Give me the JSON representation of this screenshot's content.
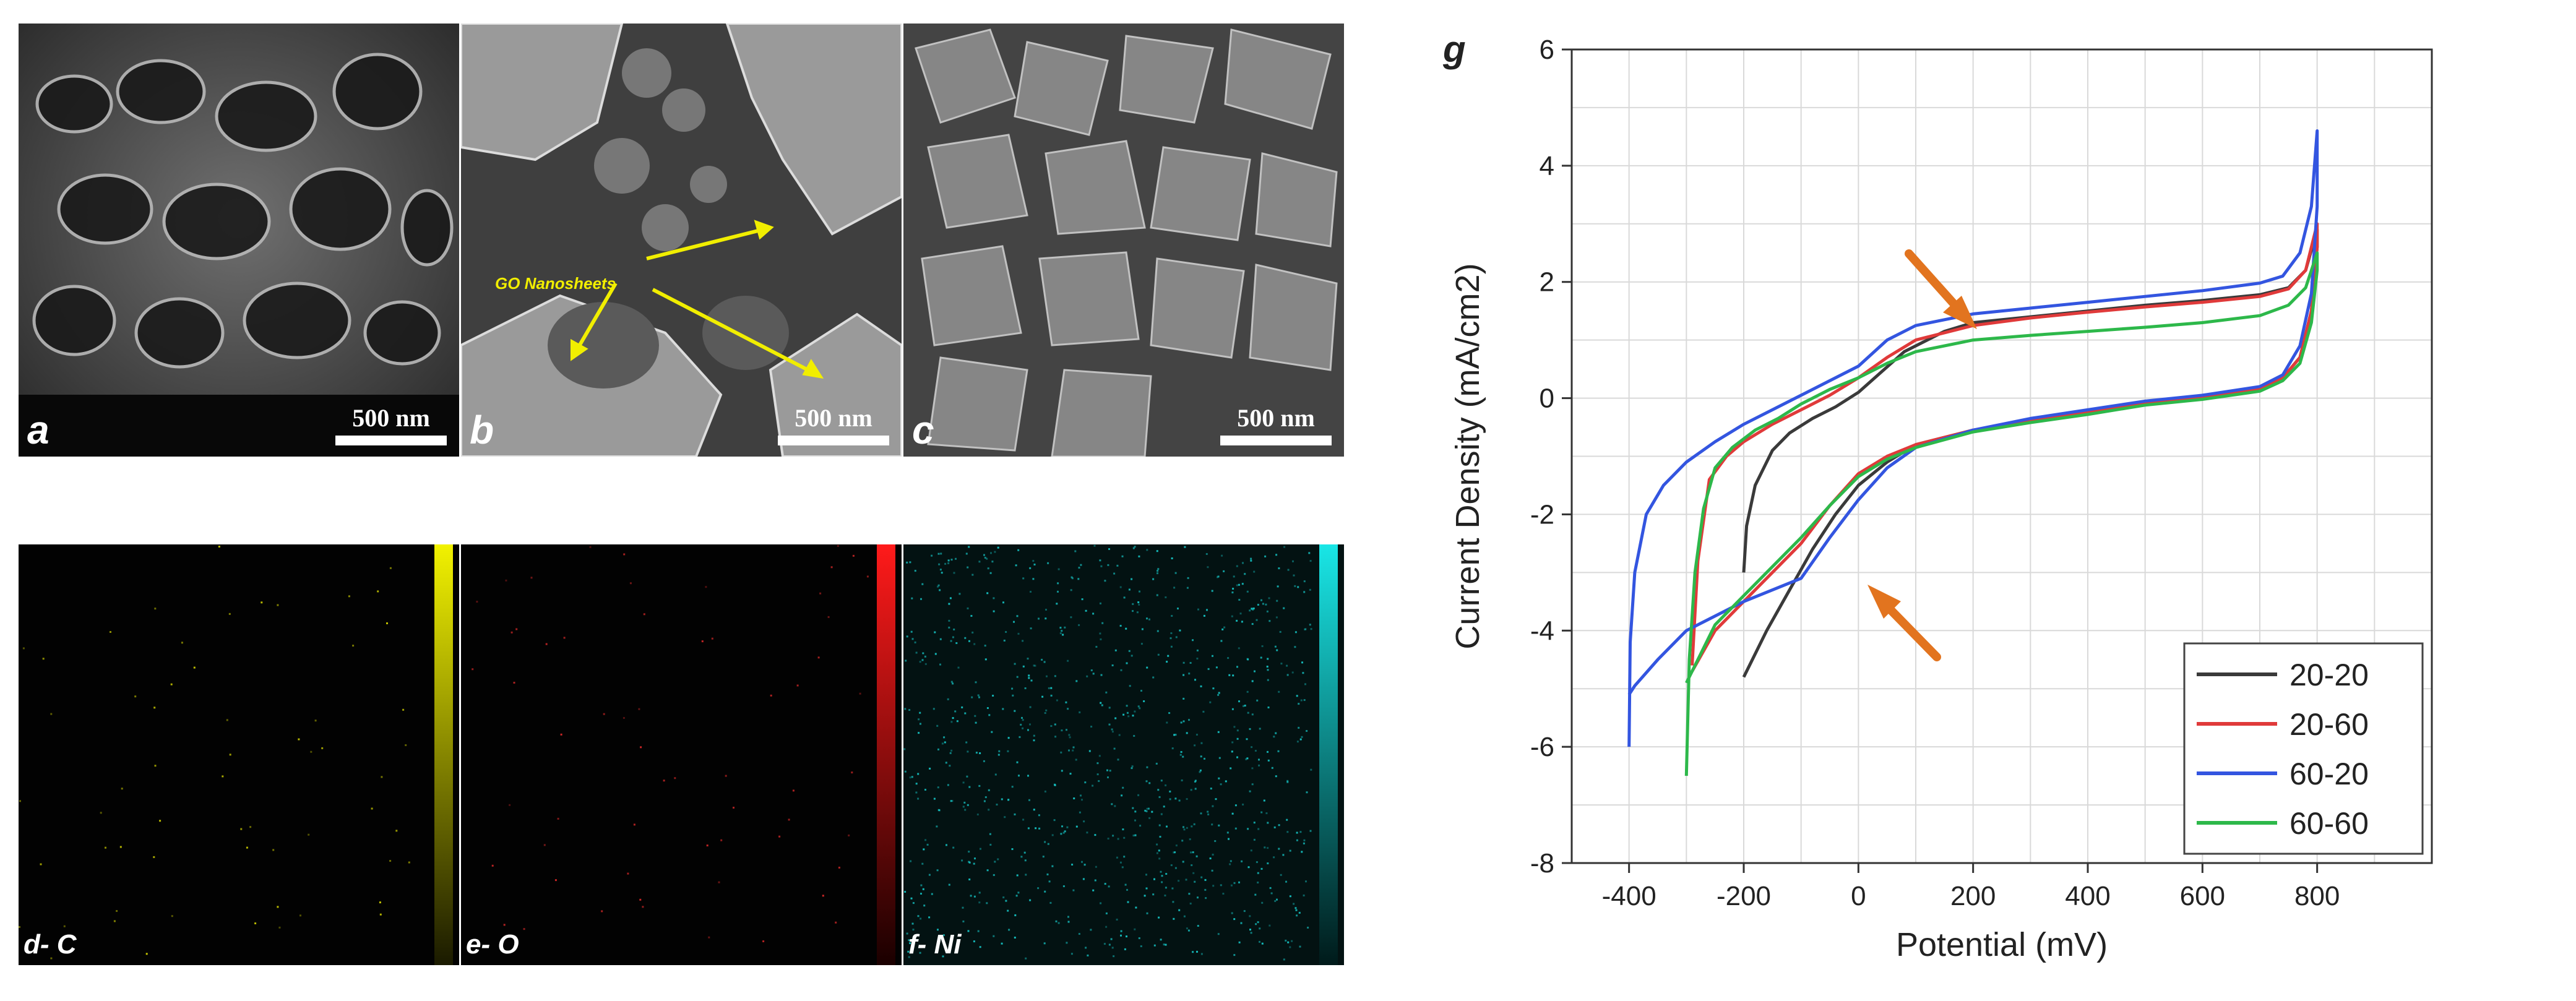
{
  "sem_panels": [
    {
      "label": "a",
      "scale": "500 nm"
    },
    {
      "label": "b",
      "scale": "500 nm",
      "annotation": "GO Nanosheets"
    },
    {
      "label": "c",
      "scale": "500 nm"
    }
  ],
  "map_panels": [
    {
      "label": "d- C",
      "color": "#f2f200"
    },
    {
      "label": "e- O",
      "color": "#ff1a1a"
    },
    {
      "label": "f- Ni",
      "color": "#19e6e6"
    }
  ],
  "chart_data": {
    "type": "line",
    "panel_label": "g",
    "xlabel": "Potential (mV)",
    "ylabel": "Current Density (mA/cm2)",
    "xlim": [
      -500,
      1000
    ],
    "ylim": [
      -8,
      6
    ],
    "xticks": [
      -400,
      -200,
      0,
      200,
      400,
      600,
      800
    ],
    "yticks": [
      -8,
      -6,
      -4,
      -2,
      0,
      2,
      4,
      6
    ],
    "grid": true,
    "legend_position": "bottom-right",
    "series": [
      {
        "name": "20-20",
        "color": "#3a3a3a",
        "x": [
          -200,
          -195,
          -180,
          -150,
          -120,
          -80,
          -40,
          0,
          40,
          80,
          150,
          200,
          300,
          400,
          500,
          600,
          700,
          750,
          780,
          800,
          800,
          790,
          770,
          740,
          700,
          600,
          500,
          400,
          300,
          200,
          100,
          50,
          0,
          -40,
          -80,
          -120,
          -160,
          -190,
          -200
        ],
        "y": [
          -3.0,
          -2.2,
          -1.5,
          -0.9,
          -0.6,
          -0.35,
          -0.15,
          0.1,
          0.45,
          0.8,
          1.15,
          1.3,
          1.4,
          1.5,
          1.6,
          1.68,
          1.78,
          1.9,
          2.2,
          2.9,
          2.6,
          1.5,
          0.7,
          0.35,
          0.15,
          0.0,
          -0.1,
          -0.25,
          -0.4,
          -0.55,
          -0.8,
          -1.1,
          -1.5,
          -2.0,
          -2.6,
          -3.3,
          -4.0,
          -4.6,
          -4.8
        ]
      },
      {
        "name": "20-60",
        "color": "#e03a3a",
        "x": [
          -290,
          -280,
          -260,
          -230,
          -200,
          -150,
          -100,
          -50,
          0,
          50,
          100,
          200,
          300,
          400,
          500,
          600,
          700,
          750,
          780,
          800,
          800,
          790,
          770,
          740,
          700,
          600,
          500,
          400,
          300,
          200,
          100,
          50,
          0,
          -50,
          -100,
          -150,
          -200,
          -250,
          -290
        ],
        "y": [
          -4.6,
          -2.8,
          -1.4,
          -1.0,
          -0.75,
          -0.45,
          -0.2,
          0.05,
          0.35,
          0.7,
          1.0,
          1.25,
          1.38,
          1.48,
          1.57,
          1.65,
          1.75,
          1.88,
          2.2,
          3.0,
          2.6,
          1.5,
          0.7,
          0.35,
          0.15,
          0.0,
          -0.1,
          -0.25,
          -0.4,
          -0.55,
          -0.8,
          -1.0,
          -1.3,
          -1.85,
          -2.5,
          -3.0,
          -3.5,
          -4.0,
          -4.7
        ]
      },
      {
        "name": "60-20",
        "color": "#3355e0",
        "x": [
          -400,
          -398,
          -390,
          -370,
          -340,
          -300,
          -250,
          -200,
          -150,
          -100,
          -50,
          0,
          50,
          100,
          200,
          300,
          400,
          500,
          600,
          700,
          740,
          770,
          790,
          800,
          800,
          790,
          770,
          740,
          700,
          600,
          500,
          400,
          300,
          200,
          100,
          50,
          0,
          -50,
          -100,
          -200,
          -300,
          -350,
          -390,
          -400
        ],
        "y": [
          -6.0,
          -4.2,
          -3.0,
          -2.0,
          -1.5,
          -1.1,
          -0.75,
          -0.45,
          -0.2,
          0.05,
          0.3,
          0.55,
          1.0,
          1.25,
          1.45,
          1.55,
          1.65,
          1.75,
          1.85,
          1.98,
          2.1,
          2.5,
          3.3,
          4.6,
          3.3,
          1.8,
          0.9,
          0.4,
          0.2,
          0.05,
          -0.05,
          -0.2,
          -0.35,
          -0.55,
          -0.85,
          -1.2,
          -1.75,
          -2.4,
          -3.1,
          -3.5,
          -4.0,
          -4.5,
          -4.95,
          -5.1
        ]
      },
      {
        "name": "60-60",
        "color": "#2db84a",
        "x": [
          -300,
          -295,
          -285,
          -270,
          -250,
          -220,
          -180,
          -140,
          -100,
          -50,
          0,
          50,
          100,
          200,
          300,
          400,
          500,
          600,
          700,
          750,
          780,
          800,
          800,
          790,
          770,
          740,
          700,
          600,
          500,
          400,
          300,
          200,
          100,
          50,
          0,
          -50,
          -100,
          -150,
          -200,
          -250,
          -300
        ],
        "y": [
          -6.5,
          -4.5,
          -3.0,
          -1.9,
          -1.2,
          -0.85,
          -0.55,
          -0.35,
          -0.1,
          0.15,
          0.35,
          0.6,
          0.8,
          1.0,
          1.08,
          1.15,
          1.22,
          1.3,
          1.42,
          1.6,
          1.9,
          2.5,
          2.2,
          1.3,
          0.6,
          0.3,
          0.12,
          -0.02,
          -0.12,
          -0.28,
          -0.42,
          -0.58,
          -0.85,
          -1.05,
          -1.35,
          -1.85,
          -2.4,
          -2.9,
          -3.4,
          -3.9,
          -4.9
        ]
      }
    ]
  }
}
